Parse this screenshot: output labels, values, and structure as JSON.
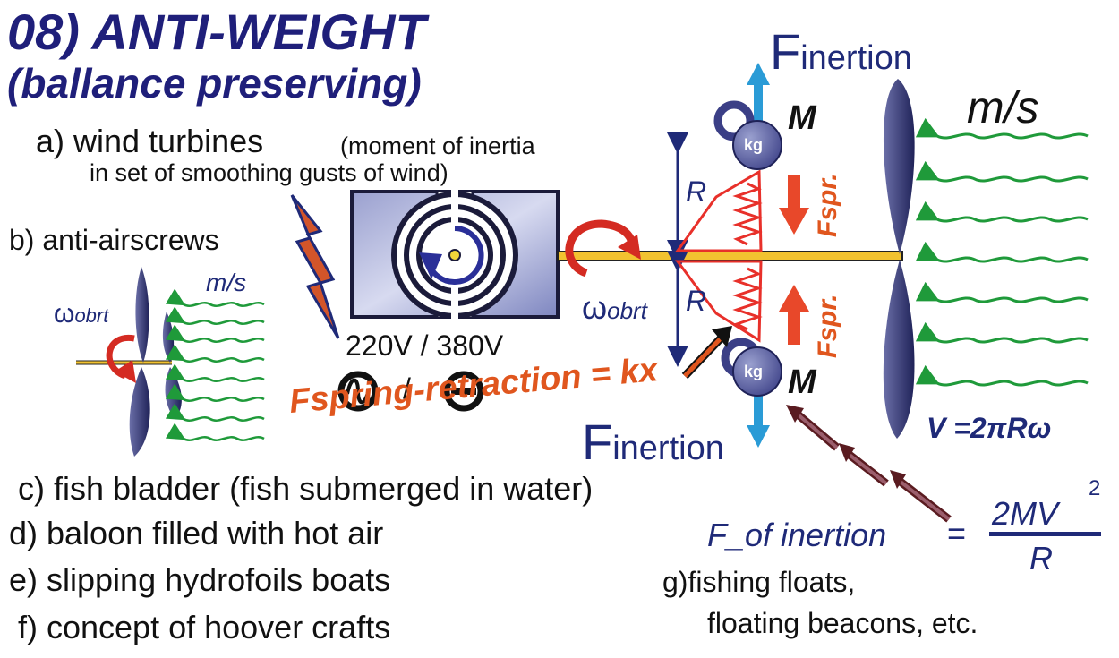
{
  "title": {
    "line1": "08) ANTI-WEIGHT",
    "line2": "(ballance preserving)"
  },
  "list": {
    "a_label": "a) wind turbines",
    "a_note_1": "(moment of inertia",
    "a_note_2": "in set of smoothing gusts of wind)",
    "b": "b) anti-airscrews",
    "c": "c) fish bladder (fish submerged in water)",
    "d": "d) baloon filled with hot air",
    "e": "e) slipping hydrofoils boats",
    "f": "f) concept of hoover crafts",
    "g_1": "g)fishing floats,",
    "g_2": "floating beacons, etc."
  },
  "diagram": {
    "speed_small": "m/s",
    "speed_large": "m/s",
    "omega_symbol": "ω",
    "omega_sub": "obrt",
    "voltage": "220V / 380V",
    "ac_dc_sep": "/",
    "radius": "R",
    "mass": "M",
    "kg": "kg",
    "f_inertion_F": "F",
    "f_inertion_sub": "inertion",
    "f_spring_short": "Fspr.",
    "f_spring_retraction": "Fspring-retraction = kx",
    "velocity_formula": "V =2πRω",
    "formula_lhs": "F_of inertion",
    "formula_eq": "=",
    "formula_num": "2MV",
    "formula_exp": "2",
    "formula_den": "R"
  },
  "colors": {
    "title_navy": "#1f1f7a",
    "blade_navy": "#2b2d6e",
    "wind_green": "#1f9a3a",
    "force_blue": "#2a9bd6",
    "spring_red": "#e8302a",
    "spring_orange": "#e0561e",
    "dark_arrow": "#5a1b20",
    "shaft_yellow": "#f2c230"
  }
}
